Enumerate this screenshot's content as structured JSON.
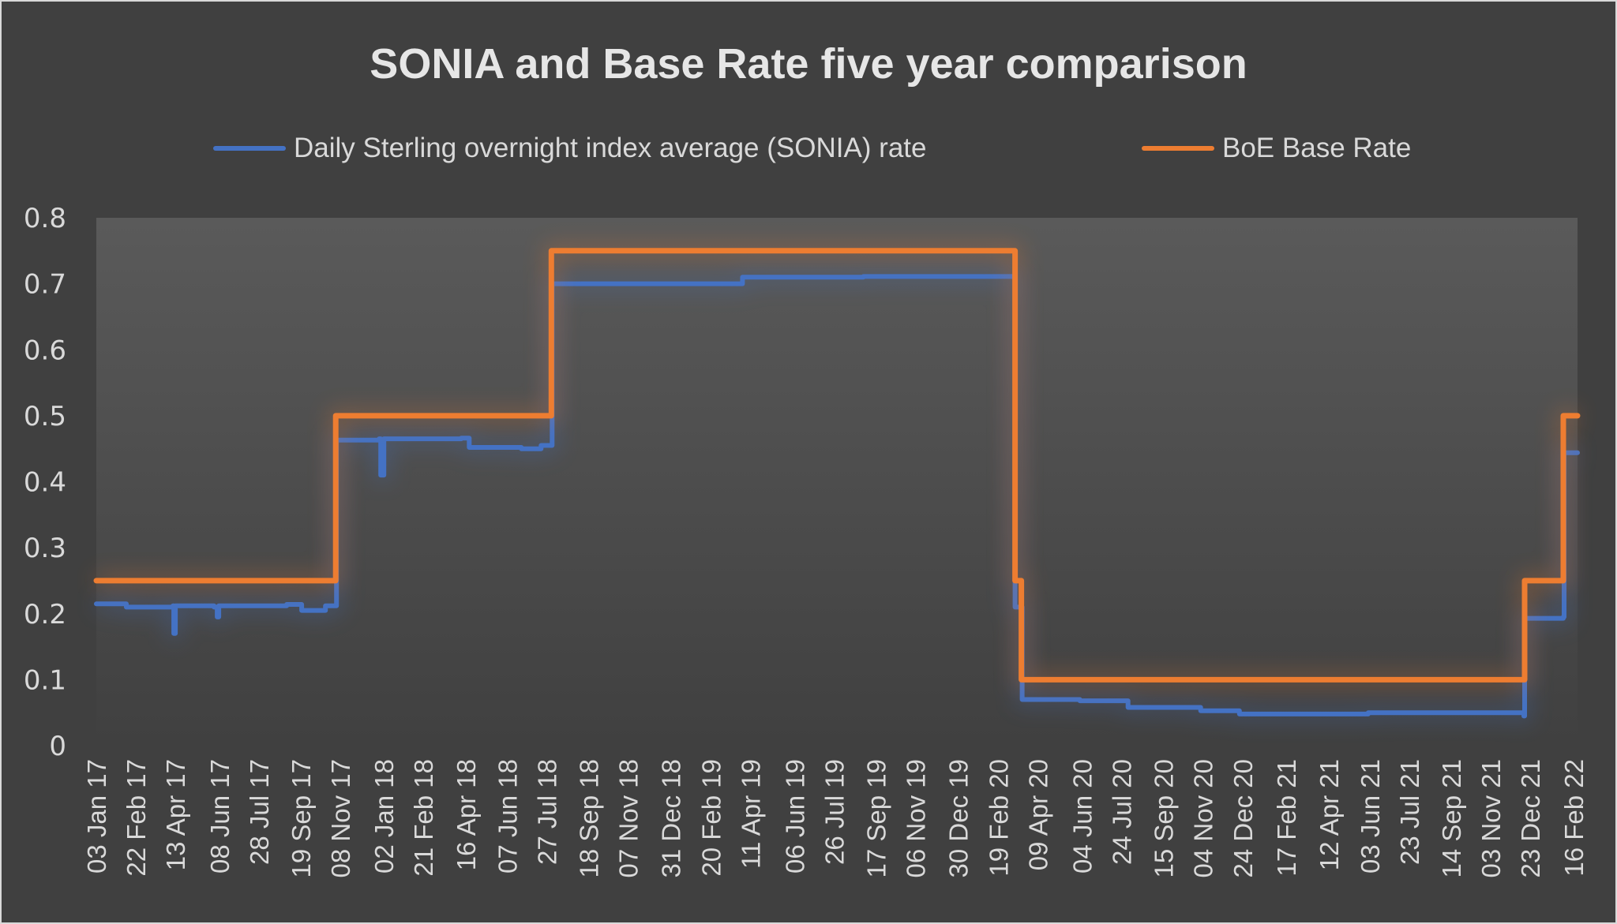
{
  "chart_data": {
    "type": "line",
    "title": "SONIA and Base Rate five year comparison",
    "xlabel": "",
    "ylabel": "",
    "ylim": [
      0,
      0.8
    ],
    "yticks": [
      "0",
      "0.1",
      "0.2",
      "0.3",
      "0.4",
      "0.5",
      "0.6",
      "0.7",
      "0.8"
    ],
    "xlim": [
      "2017-01-03",
      "2022-02-21"
    ],
    "xticks": [
      {
        "date": "2017-01-03",
        "label": "03 Jan 17"
      },
      {
        "date": "2017-02-22",
        "label": "22 Feb 17"
      },
      {
        "date": "2017-04-13",
        "label": "13 Apr 17"
      },
      {
        "date": "2017-06-08",
        "label": "08 Jun 17"
      },
      {
        "date": "2017-07-28",
        "label": "28 Jul 17"
      },
      {
        "date": "2017-09-19",
        "label": "19 Sep 17"
      },
      {
        "date": "2017-11-08",
        "label": "08 Nov 17"
      },
      {
        "date": "2018-01-02",
        "label": "02 Jan 18"
      },
      {
        "date": "2018-02-21",
        "label": "21 Feb 18"
      },
      {
        "date": "2018-04-16",
        "label": "16 Apr 18"
      },
      {
        "date": "2018-06-07",
        "label": "07 Jun 18"
      },
      {
        "date": "2018-07-27",
        "label": "27 Jul 18"
      },
      {
        "date": "2018-09-18",
        "label": "18 Sep 18"
      },
      {
        "date": "2018-11-07",
        "label": "07 Nov 18"
      },
      {
        "date": "2018-12-31",
        "label": "31 Dec 18"
      },
      {
        "date": "2019-02-20",
        "label": "20 Feb 19"
      },
      {
        "date": "2019-04-11",
        "label": "11 Apr 19"
      },
      {
        "date": "2019-06-06",
        "label": "06 Jun 19"
      },
      {
        "date": "2019-07-26",
        "label": "26 Jul 19"
      },
      {
        "date": "2019-09-17",
        "label": "17 Sep 19"
      },
      {
        "date": "2019-11-06",
        "label": "06 Nov 19"
      },
      {
        "date": "2019-12-30",
        "label": "30 Dec 19"
      },
      {
        "date": "2020-02-19",
        "label": "19 Feb 20"
      },
      {
        "date": "2020-04-09",
        "label": "09 Apr 20"
      },
      {
        "date": "2020-06-04",
        "label": "04 Jun 20"
      },
      {
        "date": "2020-07-24",
        "label": "24 Jul 20"
      },
      {
        "date": "2020-09-15",
        "label": "15 Sep 20"
      },
      {
        "date": "2020-11-04",
        "label": "04 Nov 20"
      },
      {
        "date": "2020-12-24",
        "label": "24 Dec 20"
      },
      {
        "date": "2021-02-17",
        "label": "17 Feb 21"
      },
      {
        "date": "2021-04-12",
        "label": "12 Apr 21"
      },
      {
        "date": "2021-06-03",
        "label": "03 Jun 21"
      },
      {
        "date": "2021-07-23",
        "label": "23 Jul 21"
      },
      {
        "date": "2021-09-14",
        "label": "14 Sep 21"
      },
      {
        "date": "2021-11-03",
        "label": "03 Nov 21"
      },
      {
        "date": "2021-12-23",
        "label": "23 Dec 21"
      },
      {
        "date": "2022-02-16",
        "label": "16 Feb 22"
      }
    ],
    "legend_position": "top",
    "grid": false,
    "series": [
      {
        "name": "Daily Sterling overnight index average (SONIA) rate",
        "color": "#4472c4",
        "step": true,
        "points": [
          [
            "2017-01-03",
            0.215
          ],
          [
            "2017-02-10",
            0.21
          ],
          [
            "2017-04-10",
            0.212
          ],
          [
            "2017-04-11",
            0.17
          ],
          [
            "2017-04-13",
            0.212
          ],
          [
            "2017-06-01",
            0.21
          ],
          [
            "2017-06-05",
            0.195
          ],
          [
            "2017-06-07",
            0.212
          ],
          [
            "2017-09-01",
            0.214
          ],
          [
            "2017-09-20",
            0.205
          ],
          [
            "2017-10-20",
            0.212
          ],
          [
            "2017-11-02",
            0.212
          ],
          [
            "2017-11-03",
            0.463
          ],
          [
            "2017-12-27",
            0.465
          ],
          [
            "2017-12-29",
            0.41
          ],
          [
            "2018-01-02",
            0.465
          ],
          [
            "2018-04-10",
            0.466
          ],
          [
            "2018-04-20",
            0.452
          ],
          [
            "2018-06-25",
            0.45
          ],
          [
            "2018-07-20",
            0.455
          ],
          [
            "2018-08-02",
            0.455
          ],
          [
            "2018-08-03",
            0.7
          ],
          [
            "2018-11-01",
            0.7
          ],
          [
            "2019-04-01",
            0.71
          ],
          [
            "2019-09-01",
            0.711
          ],
          [
            "2020-03-10",
            0.708
          ],
          [
            "2020-03-11",
            0.21
          ],
          [
            "2020-03-19",
            0.21
          ],
          [
            "2020-03-20",
            0.07
          ],
          [
            "2020-06-01",
            0.068
          ],
          [
            "2020-08-01",
            0.058
          ],
          [
            "2020-11-01",
            0.053
          ],
          [
            "2020-12-20",
            0.048
          ],
          [
            "2021-06-01",
            0.05
          ],
          [
            "2021-12-15",
            0.045
          ],
          [
            "2021-12-16",
            0.193
          ],
          [
            "2022-02-03",
            0.195
          ],
          [
            "2022-02-04",
            0.444
          ],
          [
            "2022-02-21",
            0.444
          ]
        ]
      },
      {
        "name": "BoE Base Rate",
        "color": "#ed7d31",
        "step": true,
        "points": [
          [
            "2017-01-03",
            0.25
          ],
          [
            "2017-11-02",
            0.5
          ],
          [
            "2018-08-02",
            0.75
          ],
          [
            "2020-03-11",
            0.25
          ],
          [
            "2020-03-19",
            0.1
          ],
          [
            "2021-12-16",
            0.25
          ],
          [
            "2022-02-03",
            0.5
          ],
          [
            "2022-02-21",
            0.5
          ]
        ]
      }
    ]
  }
}
